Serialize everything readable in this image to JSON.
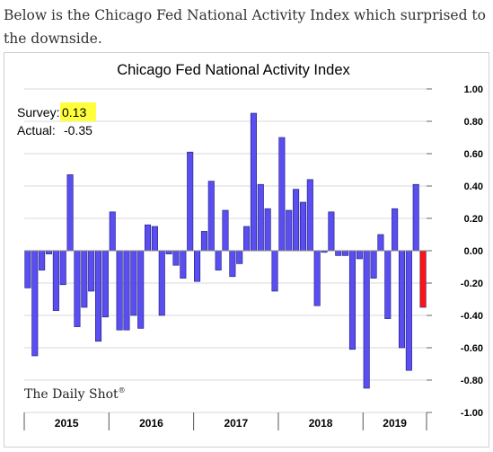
{
  "intro_text": "Below is the Chicago Fed National Activity Index which surprised to the downside.",
  "colors": {
    "bar": "#5a4ef0",
    "bar_highlight": "#ff1414",
    "survey_highlight": "#ffff3c"
  },
  "annotations": {
    "survey_label": "Survey:",
    "survey_value": "0.13",
    "actual_label": "Actual:",
    "actual_value": "-0.35"
  },
  "watermark": "The Daily Shot",
  "chart_data": {
    "type": "bar",
    "title": "Chicago Fed National Activity Index",
    "xlabel": "",
    "ylabel": "",
    "ylim": [
      -1.0,
      1.0
    ],
    "y_ticks": [
      "1.00",
      "0.80",
      "0.60",
      "0.40",
      "0.20",
      "0.00",
      "-0.20",
      "-0.40",
      "-0.60",
      "-0.80",
      "-1.00"
    ],
    "year_labels": [
      "2015",
      "2016",
      "2017",
      "2018",
      "2019"
    ],
    "grid": true,
    "highlight_last": true,
    "values": [
      -0.23,
      -0.65,
      -0.12,
      -0.02,
      -0.37,
      -0.21,
      0.47,
      -0.47,
      -0.35,
      -0.25,
      -0.56,
      -0.41,
      0.24,
      -0.49,
      -0.49,
      -0.4,
      -0.48,
      0.16,
      0.15,
      -0.4,
      -0.02,
      -0.09,
      -0.17,
      0.61,
      -0.19,
      0.12,
      0.43,
      -0.12,
      0.25,
      -0.16,
      -0.08,
      0.15,
      0.85,
      0.41,
      0.26,
      -0.25,
      0.7,
      0.25,
      0.38,
      0.3,
      0.44,
      -0.34,
      -0.01,
      0.24,
      -0.03,
      -0.03,
      -0.61,
      -0.05,
      -0.85,
      -0.17,
      0.1,
      -0.42,
      0.26,
      -0.6,
      -0.74,
      0.41,
      -0.35
    ]
  }
}
